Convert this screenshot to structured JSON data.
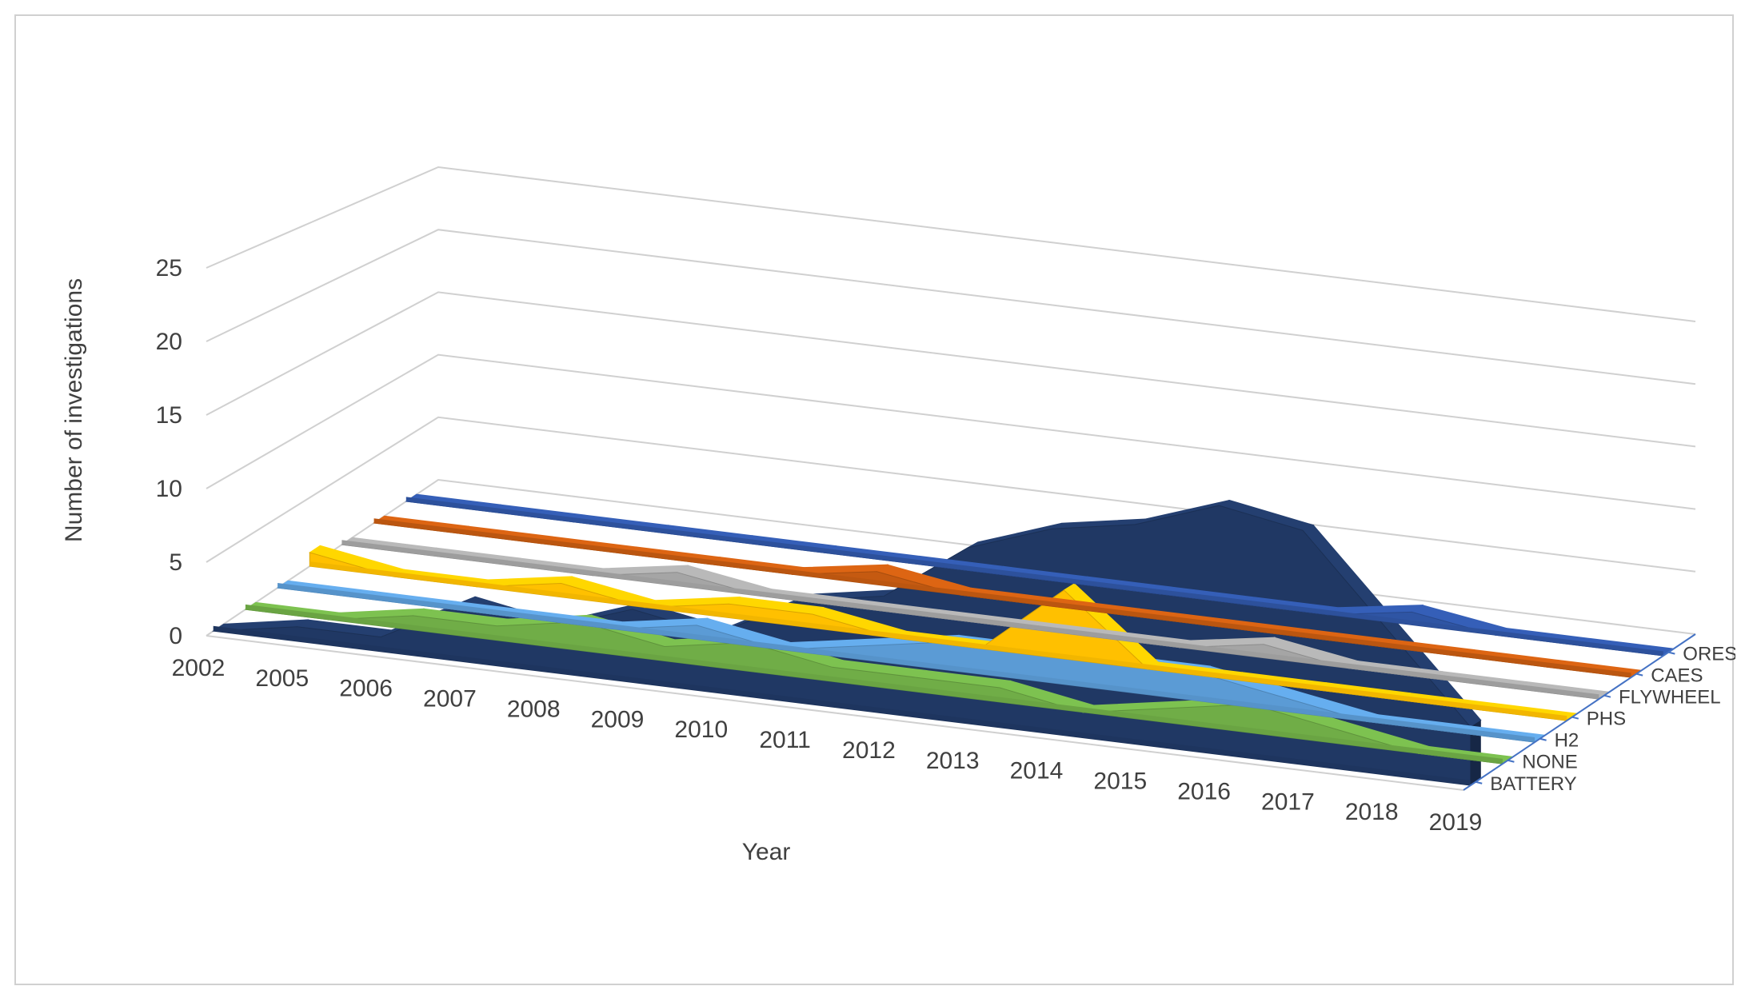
{
  "chart_data": {
    "type": "area-3d",
    "title": "",
    "xlabel": "Year",
    "ylabel": "Number of investigations",
    "ylim": [
      0,
      25
    ],
    "yticks": [
      "0",
      "5",
      "10",
      "15",
      "20",
      "25"
    ],
    "categories": [
      "2002",
      "2005",
      "2006",
      "2007",
      "2008",
      "2009",
      "2010",
      "2011",
      "2012",
      "2013",
      "2014",
      "2015",
      "2016",
      "2017",
      "2018",
      "2019"
    ],
    "series": [
      {
        "name": "ORES",
        "color": "#2f55a4",
        "values": [
          0,
          0,
          0,
          0,
          0,
          0,
          0,
          0,
          0,
          0,
          0,
          0,
          1,
          0,
          0,
          0
        ]
      },
      {
        "name": "CAES",
        "color": "#c55a11",
        "values": [
          0,
          0,
          0,
          0,
          0,
          0,
          1,
          0,
          0,
          0,
          0,
          0,
          0,
          0,
          0,
          0
        ]
      },
      {
        "name": "FLYWHEEL",
        "color": "#a5a5a5",
        "values": [
          0,
          0,
          0,
          0,
          1,
          0,
          0,
          0,
          0,
          0,
          0,
          1,
          0,
          0,
          0,
          0
        ]
      },
      {
        "name": "PHS",
        "color": "#ffc000",
        "values": [
          1,
          0,
          0,
          1,
          0,
          1,
          1,
          0,
          0,
          5,
          0,
          0,
          0,
          0,
          0,
          0
        ]
      },
      {
        "name": "H2",
        "color": "#5b9bd5",
        "values": [
          0,
          0,
          0,
          0,
          0,
          1,
          0,
          1,
          2,
          2,
          2,
          2,
          1,
          0,
          0,
          0
        ]
      },
      {
        "name": "NONE",
        "color": "#70ad47",
        "values": [
          0,
          0,
          1,
          1,
          2,
          1,
          2,
          1,
          1,
          1,
          0,
          1,
          2,
          1,
          0,
          0
        ]
      },
      {
        "name": "BATTERY",
        "color": "#203864",
        "values": [
          0,
          1,
          1,
          4,
          3,
          5,
          4,
          7,
          8,
          12,
          14,
          15,
          17,
          16,
          10,
          4
        ]
      }
    ],
    "legend": "depth axis, right"
  }
}
